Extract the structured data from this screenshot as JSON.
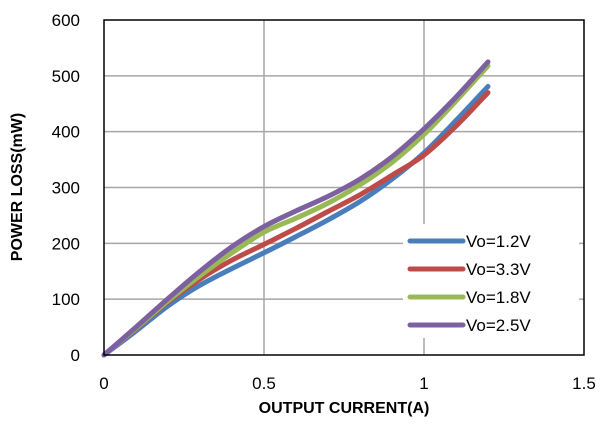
{
  "chart_data": {
    "type": "line",
    "title": "",
    "xlabel": "OUTPUT  CURRENT(A)",
    "ylabel": "POWER LOSS(mW)",
    "xlim": [
      0,
      1.5
    ],
    "ylim": [
      0,
      600
    ],
    "x_ticks": [
      0,
      0.5,
      1,
      1.5
    ],
    "x_tick_labels": [
      "0",
      "0.5",
      "1",
      "1.5"
    ],
    "y_ticks": [
      0,
      100,
      200,
      300,
      400,
      500,
      600
    ],
    "y_tick_labels": [
      "0",
      "100",
      "200",
      "300",
      "400",
      "500",
      "600"
    ],
    "grid": true,
    "legend_position": "bottom-right",
    "series": [
      {
        "name": "Vo=1.2V",
        "color": "#4a7ebb",
        "x": [
          0,
          0.1,
          0.2,
          0.3,
          0.4,
          0.5,
          0.6,
          0.7,
          0.8,
          0.9,
          1.0,
          1.1,
          1.2
        ],
        "y": [
          0,
          43,
          88,
          125,
          155,
          183,
          212,
          242,
          275,
          315,
          362,
          420,
          481
        ]
      },
      {
        "name": "Vo=3.3V",
        "color": "#be4b48",
        "x": [
          0,
          0.1,
          0.2,
          0.3,
          0.4,
          0.5,
          0.6,
          0.7,
          0.8,
          0.9,
          1.0,
          1.1,
          1.2
        ],
        "y": [
          0,
          47,
          95,
          136,
          170,
          198,
          227,
          257,
          287,
          322,
          358,
          410,
          470
        ]
      },
      {
        "name": "Vo=1.8V",
        "color": "#98b954",
        "x": [
          0,
          0.1,
          0.2,
          0.3,
          0.4,
          0.5,
          0.6,
          0.7,
          0.8,
          0.9,
          1.0,
          1.1,
          1.2
        ],
        "y": [
          0,
          48,
          97,
          142,
          183,
          220,
          245,
          272,
          305,
          345,
          395,
          455,
          518
        ]
      },
      {
        "name": "Vo=2.5V",
        "color": "#7d60a0",
        "x": [
          0,
          0.1,
          0.2,
          0.3,
          0.4,
          0.5,
          0.6,
          0.7,
          0.8,
          0.9,
          1.0,
          1.1,
          1.2
        ],
        "y": [
          0,
          50,
          101,
          150,
          194,
          230,
          258,
          284,
          315,
          355,
          405,
          462,
          525
        ]
      }
    ],
    "legend_order": [
      0,
      1,
      2,
      3
    ]
  }
}
